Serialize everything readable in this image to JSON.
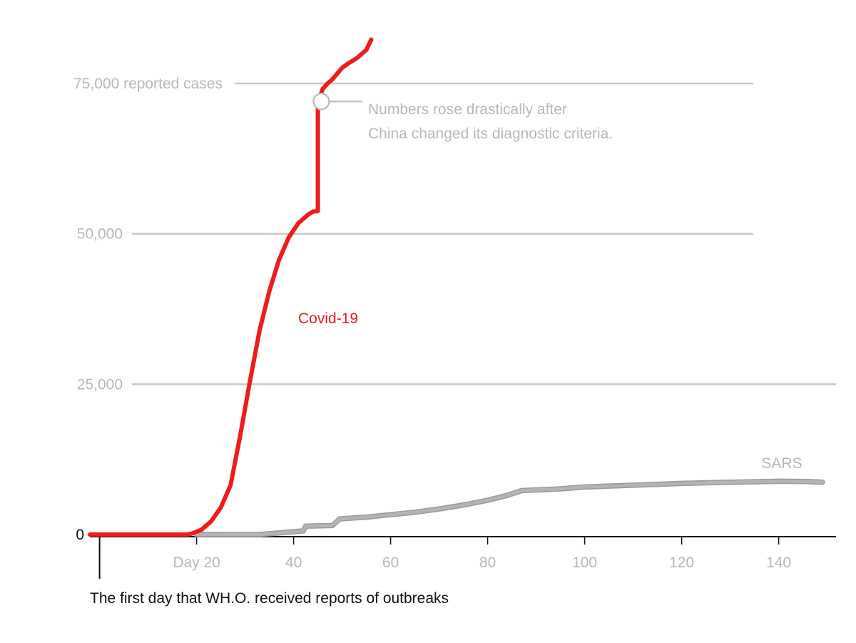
{
  "chart_data": {
    "type": "line",
    "title": "",
    "xlabel": "",
    "ylabel": "",
    "xlim": [
      0,
      150
    ],
    "ylim": [
      0,
      75000
    ],
    "y_ticks": [
      {
        "value": 0,
        "label": "0"
      },
      {
        "value": 25000,
        "label": "25,000"
      },
      {
        "value": 50000,
        "label": "50,000"
      },
      {
        "value": 75000,
        "label": "75,000 reported cases"
      }
    ],
    "x_ticks": [
      {
        "value": 20,
        "label": "Day 20"
      },
      {
        "value": 40,
        "label": "40"
      },
      {
        "value": 60,
        "label": "60"
      },
      {
        "value": 80,
        "label": "80"
      },
      {
        "value": 100,
        "label": "100"
      },
      {
        "value": 120,
        "label": "120"
      },
      {
        "value": 140,
        "label": "140"
      }
    ],
    "grid": true,
    "series": [
      {
        "name": "Covid-19",
        "color": "#ee1c1c",
        "x": [
          -2,
          0,
          10,
          18,
          19,
          21,
          23,
          25,
          27,
          29,
          31,
          33,
          35,
          37,
          39,
          41,
          43,
          44,
          45,
          45,
          46,
          47,
          48,
          50,
          51,
          53,
          55,
          56
        ],
        "y": [
          0,
          0,
          0,
          0,
          150,
          800,
          2200,
          4500,
          8200,
          16500,
          25500,
          34000,
          40500,
          45700,
          49400,
          51800,
          53200,
          53700,
          53800,
          71900,
          74100,
          75000,
          75700,
          77600,
          78200,
          79200,
          80600,
          82300
        ]
      },
      {
        "name": "SARS",
        "color": "#b4b4b8",
        "x": [
          20,
          33,
          42,
          42.5,
          48,
          49.5,
          55,
          60,
          65,
          70,
          75,
          80,
          84,
          87,
          95,
          100,
          110,
          120,
          130,
          140,
          146,
          149
        ],
        "y": [
          0,
          0,
          600,
          1400,
          1500,
          2600,
          2900,
          3300,
          3700,
          4250,
          4900,
          5700,
          6500,
          7300,
          7600,
          7900,
          8200,
          8500,
          8700,
          8850,
          8800,
          8700
        ]
      }
    ],
    "annotations": [
      {
        "x": 46,
        "y": 71900,
        "lines": [
          "Numbers rose drastically after",
          "China changed its diagnostic criteria."
        ]
      }
    ],
    "caption": "The first day that WH.O. received reports of outbreaks"
  }
}
